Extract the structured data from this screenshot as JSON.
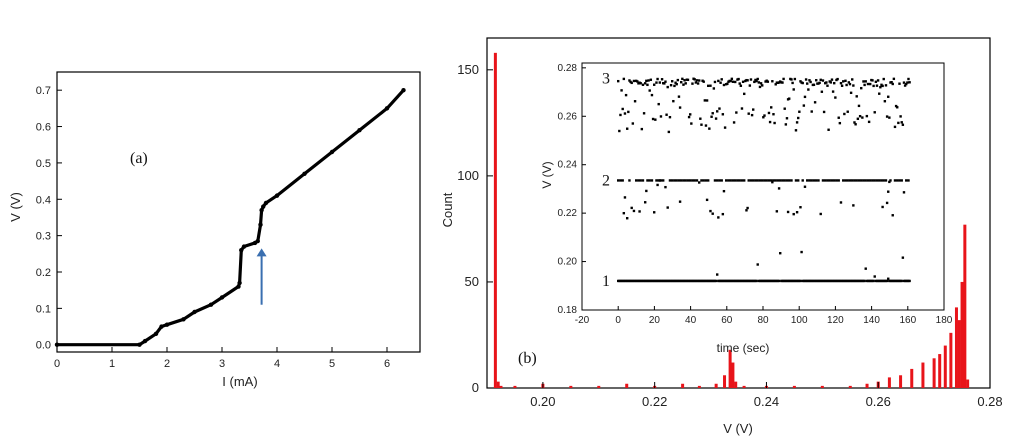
{
  "chart_data": [
    {
      "type": "line",
      "panel_label": "(a)",
      "xlabel": "I (mA)",
      "ylabel": "V (V)",
      "xlim": [
        0,
        6.6
      ],
      "ylim": [
        -0.02,
        0.75
      ],
      "xticks": [
        "0",
        "1",
        "2",
        "3",
        "4",
        "5",
        "6"
      ],
      "yticks": [
        "0.0",
        "0.1",
        "0.2",
        "0.3",
        "0.4",
        "0.5",
        "0.6",
        "0.7"
      ],
      "grid": false,
      "series": [
        {
          "color": "#000000",
          "x": [
            0,
            1.5,
            1.6,
            1.8,
            1.9,
            2.0,
            2.3,
            2.5,
            2.8,
            3.0,
            3.3,
            3.32,
            3.35,
            3.4,
            3.6,
            3.65,
            3.7,
            3.72,
            3.75,
            3.8,
            4.0,
            4.5,
            5.0,
            5.5,
            6.0,
            6.3
          ],
          "y": [
            0.0,
            0.0,
            0.01,
            0.03,
            0.05,
            0.055,
            0.07,
            0.09,
            0.11,
            0.13,
            0.16,
            0.17,
            0.26,
            0.27,
            0.28,
            0.285,
            0.33,
            0.37,
            0.38,
            0.39,
            0.41,
            0.47,
            0.53,
            0.59,
            0.65,
            0.7
          ]
        }
      ],
      "annotations": [
        {
          "type": "arrow",
          "color": "#3a6fb0",
          "x": 3.72,
          "y_start": 0.11,
          "y_end": 0.265
        }
      ]
    },
    {
      "type": "bar",
      "panel_label": "(b)",
      "xlabel": "V (V)",
      "ylabel": "Count",
      "xlim": [
        0.19,
        0.28
      ],
      "ylim": [
        0,
        165
      ],
      "xticks": [
        "0.20",
        "0.22",
        "0.24",
        "0.26",
        "0.28"
      ],
      "yticks": [
        "0",
        "50",
        "100",
        "150"
      ],
      "color": "#e8141a",
      "grid": false,
      "histogram": {
        "x": [
          0.1915,
          0.192,
          0.1925,
          0.195,
          0.2,
          0.205,
          0.21,
          0.215,
          0.22,
          0.225,
          0.228,
          0.231,
          0.2325,
          0.2335,
          0.234,
          0.2345,
          0.236,
          0.24,
          0.245,
          0.25,
          0.255,
          0.258,
          0.26,
          0.262,
          0.264,
          0.266,
          0.268,
          0.27,
          0.271,
          0.272,
          0.273,
          0.274,
          0.2745,
          0.275,
          0.2755,
          0.276
        ],
        "values": [
          158,
          3,
          1,
          1,
          2,
          1,
          1,
          2,
          1,
          2,
          1,
          2,
          6,
          18,
          12,
          3,
          1,
          1,
          1,
          1,
          1,
          2,
          3,
          5,
          6,
          9,
          12,
          14,
          16,
          20,
          26,
          38,
          32,
          50,
          77,
          4
        ]
      }
    },
    {
      "type": "scatter",
      "inset": true,
      "xlabel": "time (sec)",
      "ylabel": "V (V)",
      "xlim": [
        -20,
        180
      ],
      "ylim": [
        0.18,
        0.282
      ],
      "xticks": [
        "-20",
        "0",
        "20",
        "40",
        "60",
        "80",
        "100",
        "120",
        "140",
        "160",
        "180"
      ],
      "yticks": [
        "0.18",
        "0.20",
        "0.22",
        "0.24",
        "0.26",
        "0.28"
      ],
      "color": "#000000",
      "grid": false,
      "traces": [
        {
          "label": "1",
          "level": 0.192,
          "t_range": [
            0,
            161
          ]
        },
        {
          "label": "2",
          "level": 0.2335,
          "t_range": [
            0,
            161
          ]
        },
        {
          "label": "3",
          "level": 0.2755,
          "t_range": [
            0,
            161
          ]
        }
      ]
    }
  ]
}
